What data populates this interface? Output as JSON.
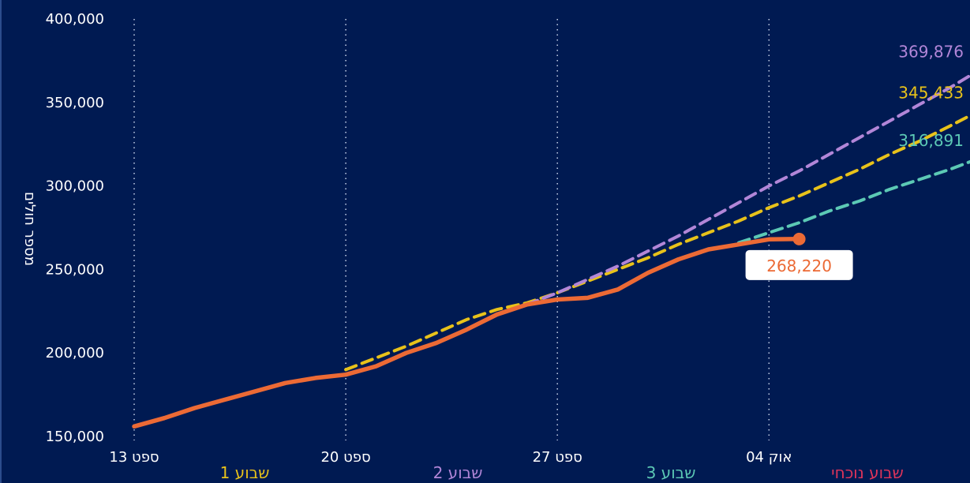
{
  "chart_data": {
    "type": "line",
    "ylabel": "מספר חולים",
    "ylim": [
      150000,
      400000
    ],
    "y_ticks": [
      {
        "value": 400000,
        "label": "400,000"
      },
      {
        "value": 350000,
        "label": "350,000"
      },
      {
        "value": 300000,
        "label": "300,000"
      },
      {
        "value": 250000,
        "label": "250,000"
      },
      {
        "value": 200000,
        "label": "200,000"
      },
      {
        "value": 150000,
        "label": "150,000"
      }
    ],
    "x_ticks": [
      {
        "day": 0,
        "label": "13 ספט"
      },
      {
        "day": 7,
        "label": "20 ספט"
      },
      {
        "day": 14,
        "label": "27 ספט"
      },
      {
        "day": 21,
        "label": "04 אוק"
      }
    ],
    "week_labels": [
      {
        "label": "שבוע 1",
        "color": "#e8c21a"
      },
      {
        "label": "שבוע 2",
        "color": "#b286d8"
      },
      {
        "label": "שבוע 3",
        "color": "#5cc9b5"
      },
      {
        "label": "שבוע נוכחי",
        "color": "#e0345a"
      }
    ],
    "grid": "vertical dotted",
    "series": [
      {
        "style": "dashed",
        "color": "#e8c21a",
        "x": [
          7,
          8,
          9,
          10,
          11,
          12,
          13,
          14,
          15,
          16,
          17,
          18,
          19,
          20,
          21,
          22,
          23,
          24,
          25,
          26,
          27,
          28
        ],
        "y": [
          190000,
          197000,
          204000,
          212000,
          220000,
          226000,
          230000,
          236000,
          243000,
          250000,
          257000,
          265000,
          272000,
          279000,
          287000,
          294000,
          302000,
          310000,
          319000,
          327000,
          336000,
          345433
        ],
        "end_label": "345,433"
      },
      {
        "style": "dashed",
        "color": "#b286d8",
        "x": [
          13,
          14,
          15,
          16,
          17,
          18,
          19,
          20,
          21,
          22,
          23,
          24,
          25,
          26,
          27,
          28
        ],
        "y": [
          229000,
          236000,
          244000,
          252000,
          261000,
          270000,
          280000,
          290000,
          300000,
          309000,
          319000,
          329000,
          339000,
          349000,
          359000,
          369876
        ],
        "end_label": "369,876"
      },
      {
        "style": "dashed",
        "color": "#5cc9b5",
        "x": [
          20,
          21,
          22,
          23,
          24,
          25,
          26,
          27,
          28
        ],
        "y": [
          266000,
          272000,
          278000,
          285000,
          291000,
          298000,
          304000,
          310000,
          316891
        ],
        "end_label": "316,891"
      },
      {
        "style": "solid",
        "color": "#ec6a35",
        "x": [
          0,
          1,
          2,
          3,
          4,
          5,
          6,
          7,
          8,
          9,
          10,
          11,
          12,
          13,
          14,
          15,
          16,
          17,
          18,
          19,
          20,
          21,
          22
        ],
        "y": [
          156000,
          161000,
          167000,
          172000,
          177000,
          182000,
          185000,
          187000,
          192000,
          200000,
          206000,
          214000,
          223000,
          229000,
          232000,
          233000,
          238000,
          248000,
          256000,
          262000,
          265000,
          268000,
          268220
        ],
        "end_label": "268,220"
      }
    ]
  }
}
